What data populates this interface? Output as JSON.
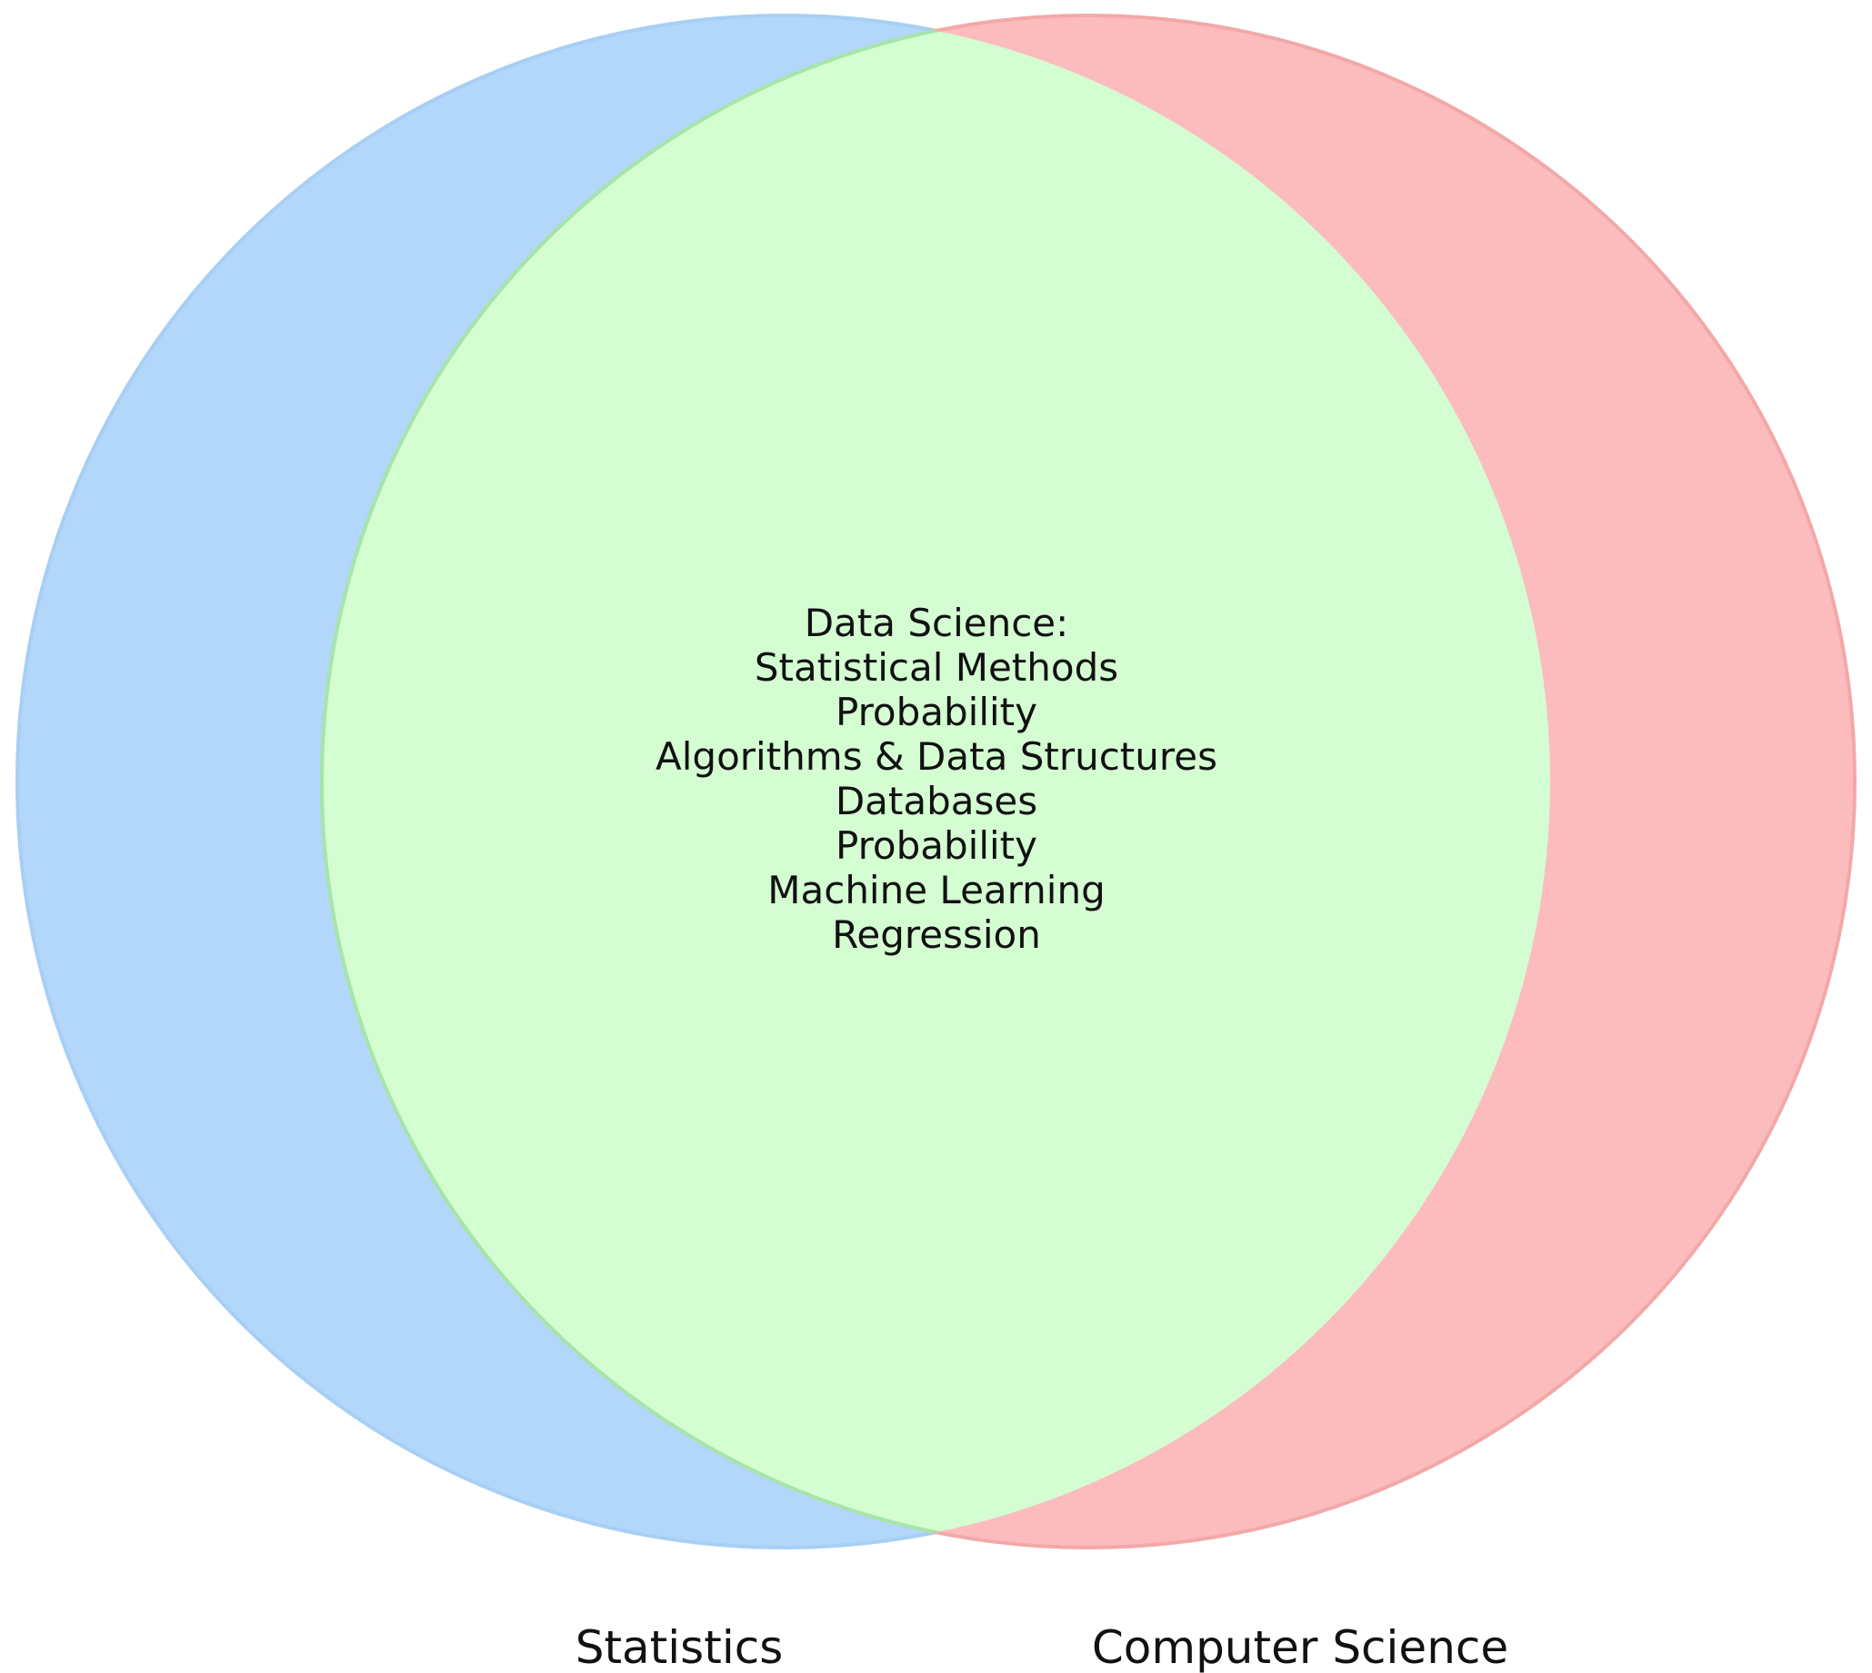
{
  "venn": {
    "sets": [
      {
        "id": "statistics",
        "label": "Statistics",
        "fill": "#b3d6fb",
        "stroke": "#a7cff5"
      },
      {
        "id": "computer-science",
        "label": "Computer Science",
        "fill": "#fcbcbd",
        "stroke": "#f3a8a8"
      }
    ],
    "intersection": {
      "fill": "#d4fdd2",
      "stroke": "#a5e6a8",
      "lines": [
        "Data Science:",
        "Statistical Methods",
        "Probability",
        "Algorithms & Data Structures",
        "Databases",
        "Probability",
        "Machine Learning",
        "Regression"
      ]
    }
  }
}
